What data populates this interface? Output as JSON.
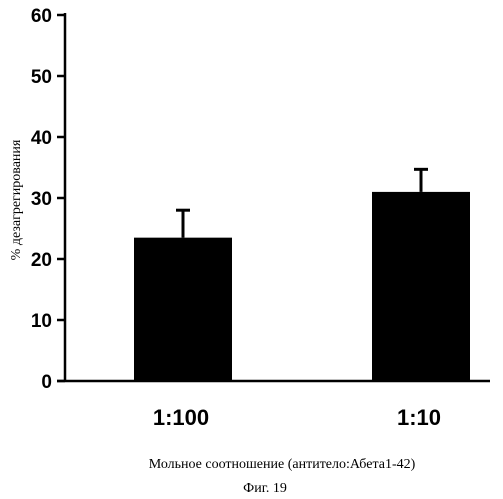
{
  "chart_data": {
    "type": "bar",
    "categories": [
      "1:100",
      "1:10"
    ],
    "values": [
      23.5,
      31.0
    ],
    "error": [
      4.5,
      3.7
    ],
    "ylabel": "% дезагрегирования",
    "xlabel": "Мольное соотношение (антитело:Абета1-42)",
    "ylim": [
      0,
      60
    ],
    "yticks": [
      "0",
      "10",
      "20",
      "30",
      "40",
      "50",
      "60"
    ],
    "grid": false,
    "bar_color": "#000000"
  },
  "figure_caption": "Фиг. 19"
}
